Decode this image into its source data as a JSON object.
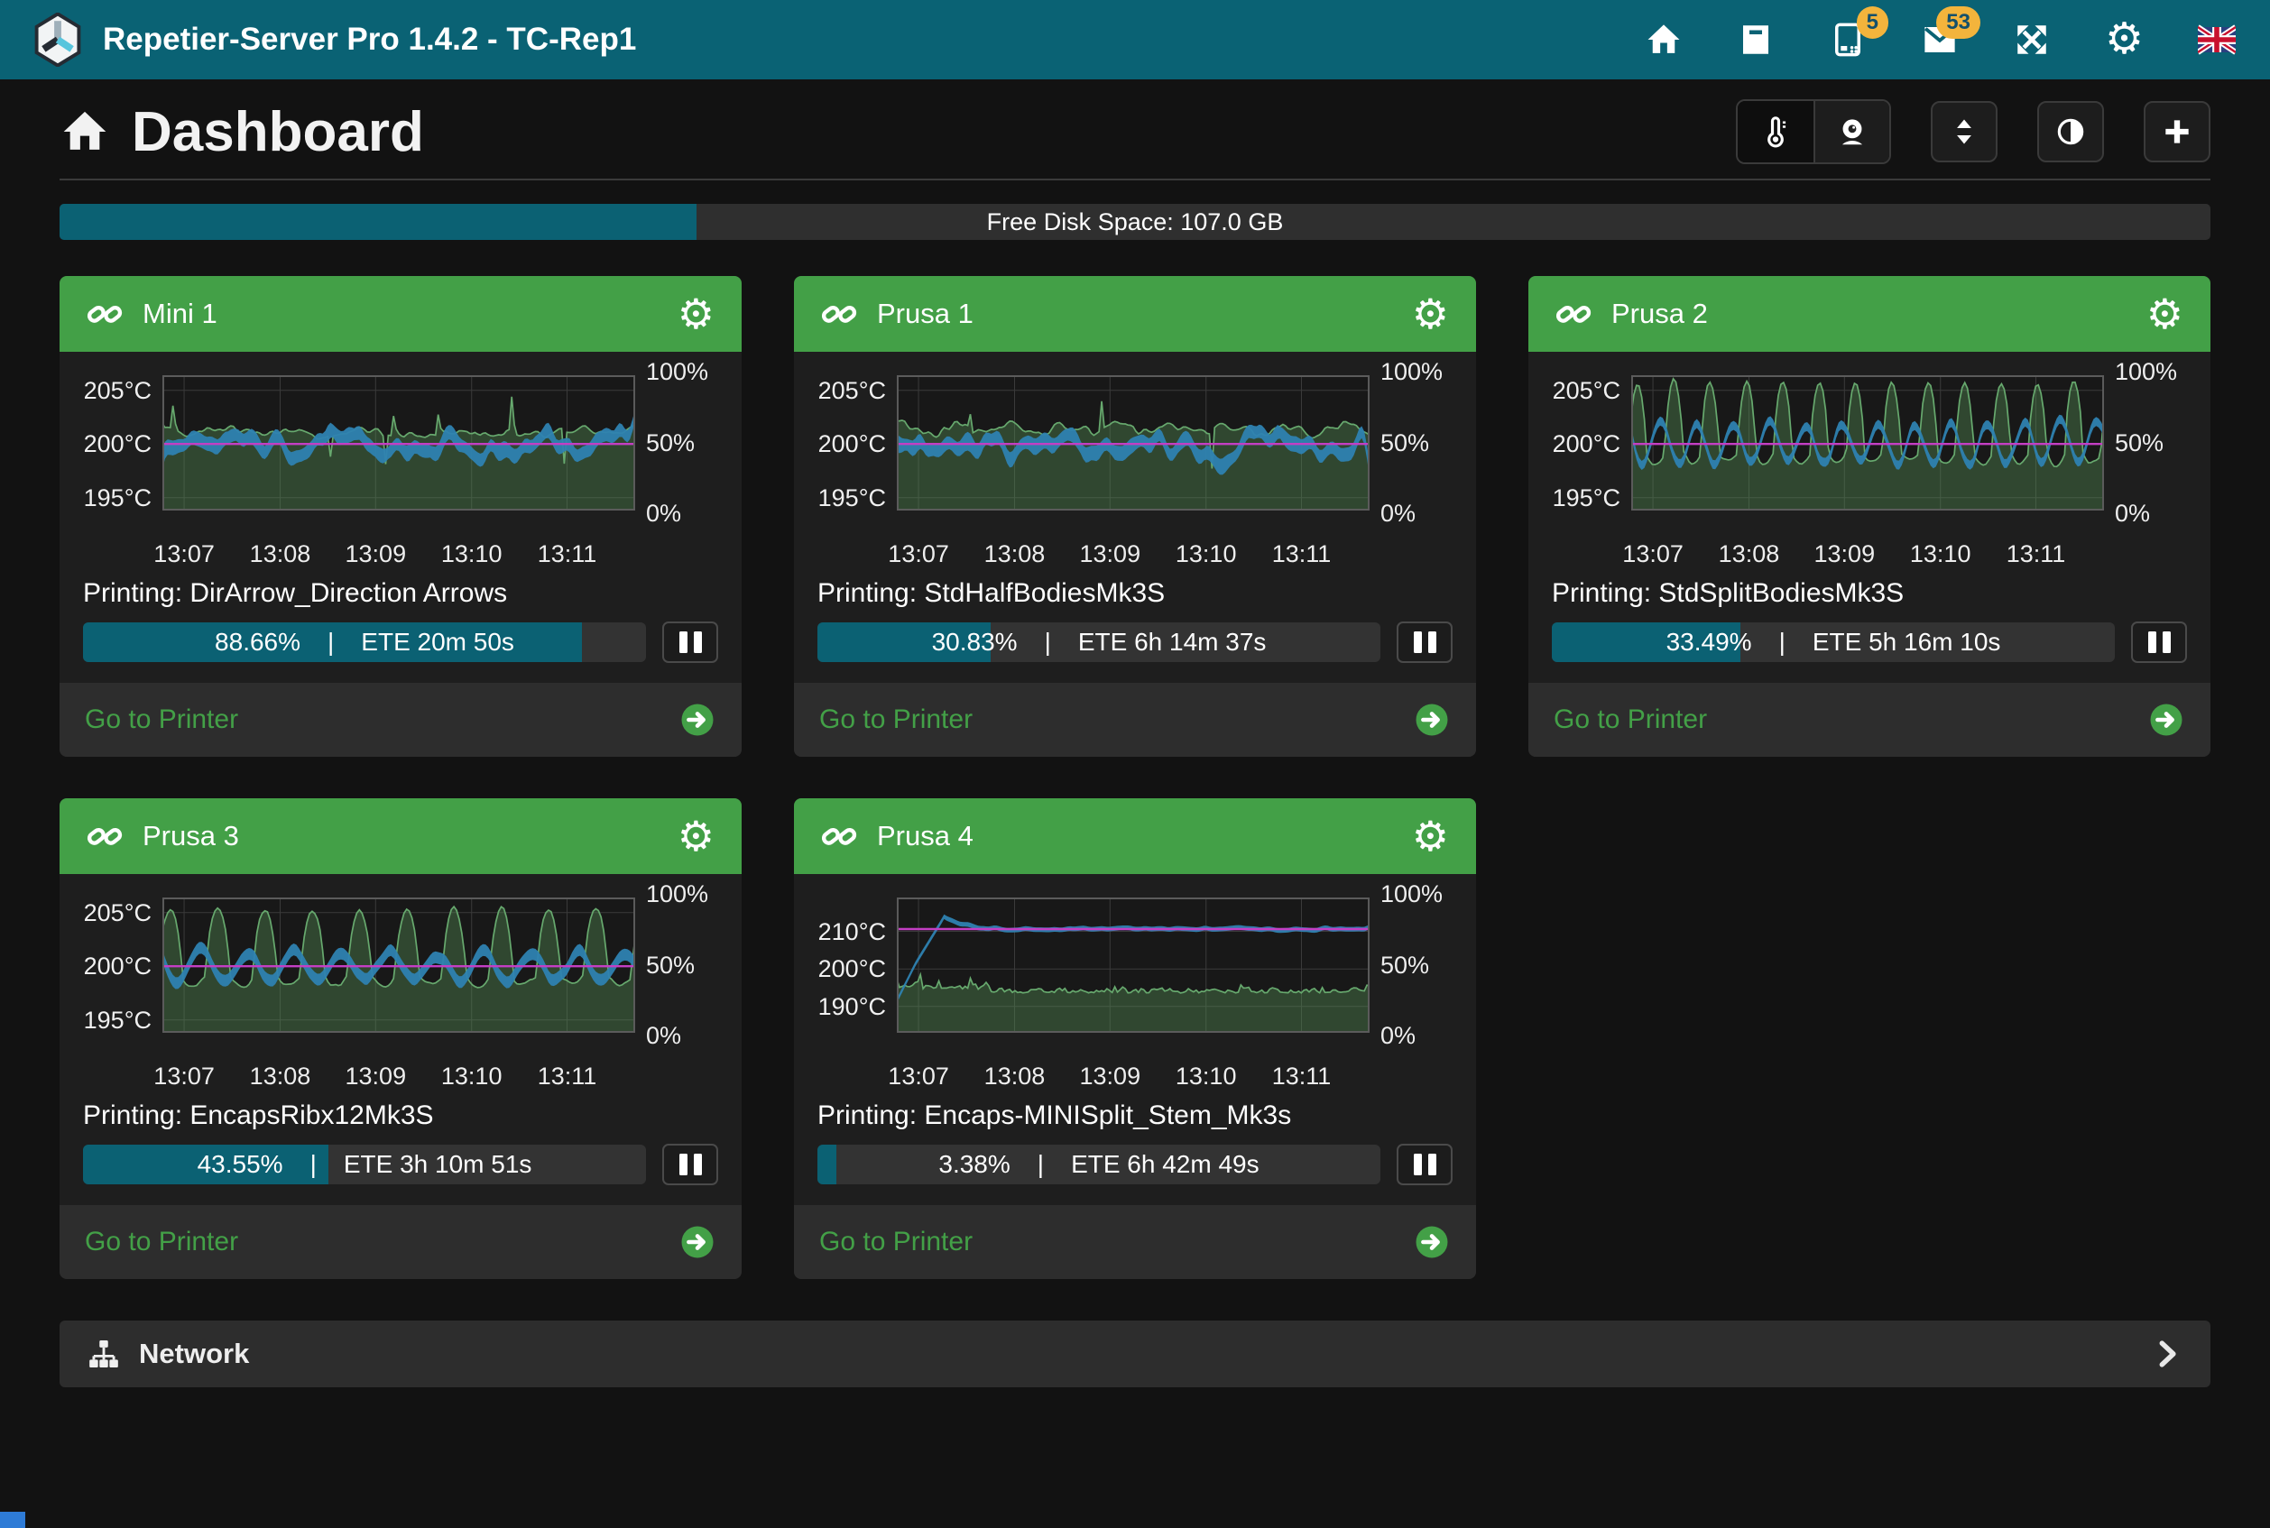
{
  "navbar": {
    "title": "Repetier-Server Pro 1.4.2 - TC-Rep1",
    "icons": [
      "home",
      "archive",
      "devices",
      "messages",
      "expand",
      "settings",
      "language-flag-uk"
    ],
    "badges": {
      "devices": "5",
      "messages": "53"
    }
  },
  "header": {
    "title": "Dashboard",
    "buttons": [
      "thermometer",
      "webcam",
      "sort",
      "contrast",
      "add-printer"
    ]
  },
  "disk": {
    "label": "Free Disk Space: 107.0 GB",
    "fill_pct": 29.6
  },
  "colors": {
    "navbar": "#0a6274",
    "accent_teal": "#0b6173",
    "card_header_green": "#43a047",
    "page_bg": "#121212",
    "card_bg": "#1e1e1e",
    "panel_bg": "#2d2d2d",
    "progress_track": "#333333",
    "badge": "#f3b43c",
    "chart_green": "#67a96e",
    "chart_blue": "#2e82b1",
    "chart_target": "#c43ec4"
  },
  "printers": [
    {
      "name": "Mini 1",
      "job": "Printing: DirArrow_Direction Arrows",
      "progress_pct": 88.66,
      "progress_label": "88.66%",
      "ete": "ETE 20m 50s",
      "link_label": "Go to Printer",
      "chart": {
        "type": "area",
        "pattern": "flat-spikes",
        "seed": 11,
        "y_ticks": [
          {
            "label": "205°C",
            "value": 205
          },
          {
            "label": "200°C",
            "value": 200
          },
          {
            "label": "195°C",
            "value": 195
          }
        ],
        "y_range": [
          193.8,
          206.4
        ],
        "target": 200,
        "x_ticks": [
          "13:07",
          "13:08",
          "13:09",
          "13:10",
          "13:11"
        ],
        "right_ticks": [
          "100%",
          "50%",
          "0%"
        ],
        "series": [
          {
            "name": "bed-temp",
            "color": "green",
            "base": 201.1,
            "spikes_to": 204.8,
            "dips_to": 197.4
          },
          {
            "name": "hotend-temp",
            "color": "blue",
            "base": 200,
            "wobble": 0.5
          },
          {
            "name": "target-temp",
            "color": "magenta",
            "value": 200
          }
        ]
      }
    },
    {
      "name": "Prusa 1",
      "job": "Printing: StdHalfBodiesMk3S",
      "progress_pct": 30.83,
      "progress_label": "30.83%",
      "ete": "ETE 6h 14m 37s",
      "link_label": "Go to Printer",
      "chart": {
        "type": "area",
        "pattern": "wavy",
        "seed": 22,
        "y_ticks": [
          {
            "label": "205°C",
            "value": 205
          },
          {
            "label": "200°C",
            "value": 200
          },
          {
            "label": "195°C",
            "value": 195
          }
        ],
        "y_range": [
          193.8,
          206.4
        ],
        "target": 200,
        "x_ticks": [
          "13:07",
          "13:08",
          "13:09",
          "13:10",
          "13:11"
        ],
        "right_ticks": [
          "100%",
          "50%",
          "0%"
        ],
        "series": [
          {
            "name": "bed-temp",
            "color": "green",
            "base": 201.4,
            "ripple": 0.5,
            "spikes_to": 204.2
          },
          {
            "name": "hotend-temp",
            "color": "blue",
            "base": 200,
            "wobble": 0.5
          },
          {
            "name": "target-temp",
            "color": "magenta",
            "value": 200
          }
        ]
      }
    },
    {
      "name": "Prusa 2",
      "job": "Printing: StdSplitBodiesMk3S",
      "progress_pct": 33.49,
      "progress_label": "33.49%",
      "ete": "ETE 5h 16m 10s",
      "link_label": "Go to Printer",
      "chart": {
        "type": "area",
        "pattern": "mounds",
        "seed": 33,
        "periods": 13,
        "peak": 6.6,
        "blue_amp": 1.9,
        "blue_half": 0.42,
        "y_ticks": [
          {
            "label": "205°C",
            "value": 205
          },
          {
            "label": "200°C",
            "value": 200
          },
          {
            "label": "195°C",
            "value": 195
          }
        ],
        "y_range": [
          193.8,
          206.4
        ],
        "target": 200,
        "x_ticks": [
          "13:07",
          "13:08",
          "13:09",
          "13:10",
          "13:11"
        ],
        "right_ticks": [
          "100%",
          "50%",
          "0%"
        ],
        "series": [
          {
            "name": "bed-temp",
            "color": "green",
            "valley": 198.2,
            "peak": 205.8
          },
          {
            "name": "hotend-temp",
            "color": "blue",
            "base": 200,
            "amplitude": 1.9
          },
          {
            "name": "target-temp",
            "color": "magenta",
            "value": 200
          }
        ]
      }
    },
    {
      "name": "Prusa 3",
      "job": "Printing: EncapsRibx12Mk3S",
      "progress_pct": 43.55,
      "progress_label": "43.55%",
      "ete": "ETE 3h 10m 51s",
      "link_label": "Go to Printer",
      "chart": {
        "type": "area",
        "pattern": "mounds",
        "seed": 44,
        "periods": 10,
        "peak": 6.2,
        "blue_amp": 1.25,
        "blue_half": 0.55,
        "y_ticks": [
          {
            "label": "205°C",
            "value": 205
          },
          {
            "label": "200°C",
            "value": 200
          },
          {
            "label": "195°C",
            "value": 195
          }
        ],
        "y_range": [
          193.8,
          206.4
        ],
        "target": 200,
        "x_ticks": [
          "13:07",
          "13:08",
          "13:09",
          "13:10",
          "13:11"
        ],
        "right_ticks": [
          "100%",
          "50%",
          "0%"
        ],
        "series": [
          {
            "name": "bed-temp",
            "color": "green",
            "valley": 198.3,
            "peak": 205.4
          },
          {
            "name": "hotend-temp",
            "color": "blue",
            "base": 200,
            "amplitude": 1.25
          },
          {
            "name": "target-temp",
            "color": "magenta",
            "value": 200
          }
        ]
      }
    },
    {
      "name": "Prusa 4",
      "job": "Printing: Encaps-MINISplit_Stem_Mk3s",
      "progress_pct": 3.38,
      "progress_label": "3.38%",
      "ete": "ETE 6h 42m 49s",
      "link_label": "Go to Printer",
      "chart": {
        "type": "area",
        "pattern": "ramp",
        "seed": 55,
        "y_ticks": [
          {
            "label": "210°C",
            "value": 210
          },
          {
            "label": "200°C",
            "value": 200
          },
          {
            "label": "190°C",
            "value": 190
          }
        ],
        "y_range": [
          183,
          219
        ],
        "target": 210.6,
        "x_ticks": [
          "13:07",
          "13:08",
          "13:09",
          "13:10",
          "13:11"
        ],
        "right_ticks": [
          "100%",
          "50%",
          "0%"
        ],
        "series": [
          {
            "name": "hotend-temp",
            "color": "blue",
            "start": 191.5,
            "overshoot": 213.8,
            "settle": 210.6
          },
          {
            "name": "bed-temp",
            "color": "green",
            "base": 194,
            "spikes_to": 199.5
          },
          {
            "name": "target-temp",
            "color": "magenta",
            "value": 210.6
          }
        ]
      }
    }
  ],
  "network": {
    "label": "Network"
  }
}
